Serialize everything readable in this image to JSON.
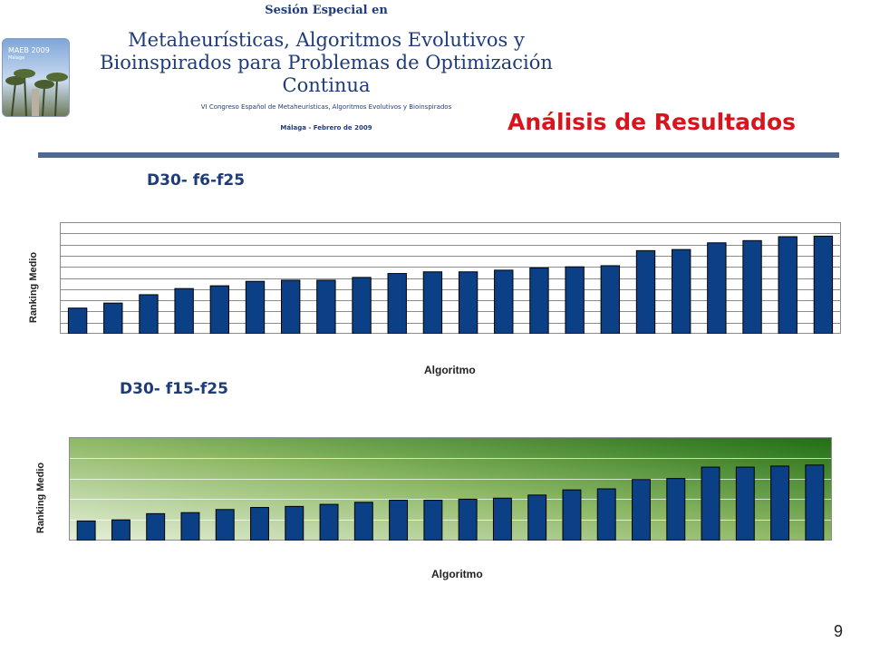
{
  "header": {
    "logo_text": "MAEB 2009",
    "logo_subtext": "Málaga",
    "kicker": "Sesión Especial en",
    "title": "Metaheurísticas, Algoritmos Evolutivos y Bioinspirados para Problemas de Optimización Continua",
    "subtitle": "VI Congreso Español de Metaheurísticas, Algoritmos Evolutivos y Bioinspirados",
    "date": "Málaga - Febrero de 2009"
  },
  "section_title": "Análisis de Resultados",
  "page_number": "9",
  "colors": {
    "bar": "#0b3f86",
    "title_blue": "#1f3c7a",
    "section_red": "#d8141c",
    "rule": "#4e6a8e",
    "grad_light": "#e6efd9",
    "grad_dark": "#1f6e14"
  },
  "chart_data": [
    {
      "type": "bar",
      "title": "D30- f6-f25",
      "xlabel": "Algoritmo",
      "ylabel": "Ranking Medio",
      "ylim": [
        0,
        10
      ],
      "gridlines": 10,
      "values": [
        2.3,
        2.75,
        3.5,
        4.05,
        4.3,
        4.7,
        4.8,
        4.8,
        5.05,
        5.4,
        5.55,
        5.55,
        5.7,
        5.9,
        6.0,
        6.1,
        7.45,
        7.55,
        8.15,
        8.35,
        8.7,
        8.75
      ]
    },
    {
      "type": "bar",
      "title": "D30- f15-f25",
      "xlabel": "Algoritmo",
      "ylabel": "Ranking Medio",
      "ylim": [
        0,
        5
      ],
      "gridlines": 5,
      "values": [
        0.95,
        1.0,
        1.3,
        1.35,
        1.5,
        1.6,
        1.65,
        1.75,
        1.85,
        1.95,
        1.95,
        2.0,
        2.05,
        2.2,
        2.45,
        2.5,
        2.95,
        3.0,
        3.55,
        3.55,
        3.6,
        3.65
      ]
    }
  ]
}
